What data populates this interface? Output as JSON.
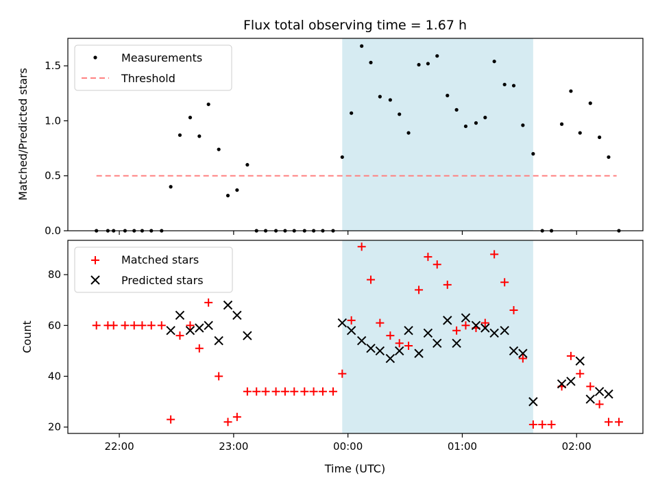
{
  "chart_data": [
    {
      "type": "scatter",
      "title": "Flux total observing time = 1.67 h",
      "xlabel": "",
      "ylabel": "Matched/Predicted stars",
      "ylim": [
        0,
        1.75
      ],
      "yticks": [
        0.0,
        0.5,
        1.0,
        1.5
      ],
      "ytick_labels": [
        "0.0",
        "0.5",
        "1.0",
        "1.5"
      ],
      "legend_position": "top-left",
      "shaded_region": {
        "x_start": -0.05,
        "x_end": 1.62,
        "color": "#add8e6"
      },
      "series": [
        {
          "name": "Measurements",
          "marker": "dot",
          "color": "#000000",
          "points": [
            [
              -2.2,
              0
            ],
            [
              -2.1,
              0
            ],
            [
              -2.05,
              0
            ],
            [
              -1.95,
              0
            ],
            [
              -1.87,
              0
            ],
            [
              -1.8,
              0
            ],
            [
              -1.72,
              0
            ],
            [
              -1.63,
              0
            ],
            [
              -1.55,
              0.4
            ],
            [
              -1.47,
              0.87
            ],
            [
              -1.38,
              1.03
            ],
            [
              -1.3,
              0.86
            ],
            [
              -1.22,
              1.15
            ],
            [
              -1.13,
              0.74
            ],
            [
              -1.05,
              0.32
            ],
            [
              -0.97,
              0.37
            ],
            [
              -0.88,
              0.6
            ],
            [
              -0.8,
              0
            ],
            [
              -0.72,
              0
            ],
            [
              -0.63,
              0
            ],
            [
              -0.55,
              0
            ],
            [
              -0.47,
              0
            ],
            [
              -0.38,
              0
            ],
            [
              -0.3,
              0
            ],
            [
              -0.22,
              0
            ],
            [
              -0.13,
              0
            ],
            [
              -0.05,
              0.67
            ],
            [
              0.03,
              1.07
            ],
            [
              0.12,
              1.68
            ],
            [
              0.2,
              1.53
            ],
            [
              0.28,
              1.22
            ],
            [
              0.37,
              1.19
            ],
            [
              0.45,
              1.06
            ],
            [
              0.53,
              0.89
            ],
            [
              0.62,
              1.51
            ],
            [
              0.7,
              1.52
            ],
            [
              0.78,
              1.59
            ],
            [
              0.87,
              1.23
            ],
            [
              0.95,
              1.1
            ],
            [
              1.03,
              0.95
            ],
            [
              1.12,
              0.98
            ],
            [
              1.2,
              1.03
            ],
            [
              1.28,
              1.54
            ],
            [
              1.37,
              1.33
            ],
            [
              1.45,
              1.32
            ],
            [
              1.53,
              0.96
            ],
            [
              1.62,
              0.7
            ],
            [
              1.7,
              0
            ],
            [
              1.78,
              0
            ],
            [
              1.87,
              0.97
            ],
            [
              1.95,
              1.27
            ],
            [
              2.03,
              0.89
            ],
            [
              2.12,
              1.16
            ],
            [
              2.2,
              0.85
            ],
            [
              2.28,
              0.67
            ],
            [
              2.37,
              0
            ]
          ]
        },
        {
          "name": "Threshold",
          "style": "dashed",
          "color": "#ff8080",
          "points": [
            [
              -2.2,
              0.5
            ],
            [
              2.35,
              0.5
            ]
          ]
        }
      ]
    },
    {
      "type": "scatter",
      "title": "",
      "xlabel": "Time (UTC)",
      "ylabel": "Count",
      "ylim": [
        17.5,
        93.5
      ],
      "yticks": [
        20,
        40,
        60,
        80
      ],
      "ytick_labels": [
        "20",
        "40",
        "60",
        "80"
      ],
      "xlim": [
        -2.45,
        2.58
      ],
      "xticks": [
        -2,
        -1,
        0,
        1,
        2
      ],
      "xtick_labels": [
        "22:00",
        "23:00",
        "00:00",
        "01:00",
        "02:00"
      ],
      "legend_position": "top-left",
      "shaded_region": {
        "x_start": -0.05,
        "x_end": 1.62,
        "color": "#add8e6"
      },
      "series": [
        {
          "name": "Matched stars",
          "marker": "plus",
          "color": "#ff0000",
          "points": [
            [
              -2.2,
              60
            ],
            [
              -2.1,
              60
            ],
            [
              -2.05,
              60
            ],
            [
              -1.95,
              60
            ],
            [
              -1.87,
              60
            ],
            [
              -1.8,
              60
            ],
            [
              -1.72,
              60
            ],
            [
              -1.63,
              60
            ],
            [
              -1.55,
              23
            ],
            [
              -1.47,
              56
            ],
            [
              -1.38,
              60
            ],
            [
              -1.3,
              51
            ],
            [
              -1.22,
              69
            ],
            [
              -1.13,
              40
            ],
            [
              -1.05,
              22
            ],
            [
              -0.97,
              24
            ],
            [
              -0.88,
              34
            ],
            [
              -0.8,
              34
            ],
            [
              -0.72,
              34
            ],
            [
              -0.63,
              34
            ],
            [
              -0.55,
              34
            ],
            [
              -0.47,
              34
            ],
            [
              -0.38,
              34
            ],
            [
              -0.3,
              34
            ],
            [
              -0.22,
              34
            ],
            [
              -0.13,
              34
            ],
            [
              -0.05,
              41
            ],
            [
              0.03,
              62
            ],
            [
              0.12,
              91
            ],
            [
              0.2,
              78
            ],
            [
              0.28,
              61
            ],
            [
              0.37,
              56
            ],
            [
              0.45,
              53
            ],
            [
              0.53,
              52
            ],
            [
              0.62,
              74
            ],
            [
              0.7,
              87
            ],
            [
              0.78,
              84
            ],
            [
              0.87,
              76
            ],
            [
              0.95,
              58
            ],
            [
              1.03,
              60
            ],
            [
              1.12,
              59
            ],
            [
              1.2,
              61
            ],
            [
              1.28,
              88
            ],
            [
              1.37,
              77
            ],
            [
              1.45,
              66
            ],
            [
              1.53,
              47
            ],
            [
              1.62,
              21
            ],
            [
              1.7,
              21
            ],
            [
              1.78,
              21
            ],
            [
              1.87,
              36
            ],
            [
              1.95,
              48
            ],
            [
              2.03,
              41
            ],
            [
              2.12,
              36
            ],
            [
              2.2,
              29
            ],
            [
              2.28,
              22
            ],
            [
              2.37,
              22
            ]
          ]
        },
        {
          "name": "Predicted stars",
          "marker": "x",
          "color": "#000000",
          "points": [
            [
              -1.55,
              58
            ],
            [
              -1.47,
              64
            ],
            [
              -1.38,
              58
            ],
            [
              -1.3,
              59
            ],
            [
              -1.22,
              60
            ],
            [
              -1.13,
              54
            ],
            [
              -1.05,
              68
            ],
            [
              -0.97,
              64
            ],
            [
              -0.88,
              56
            ],
            [
              -0.05,
              61
            ],
            [
              0.03,
              58
            ],
            [
              0.12,
              54
            ],
            [
              0.2,
              51
            ],
            [
              0.28,
              50
            ],
            [
              0.37,
              47
            ],
            [
              0.45,
              50
            ],
            [
              0.53,
              58
            ],
            [
              0.62,
              49
            ],
            [
              0.7,
              57
            ],
            [
              0.78,
              53
            ],
            [
              0.87,
              62
            ],
            [
              0.95,
              53
            ],
            [
              1.03,
              63
            ],
            [
              1.12,
              60
            ],
            [
              1.2,
              59
            ],
            [
              1.28,
              57
            ],
            [
              1.37,
              58
            ],
            [
              1.45,
              50
            ],
            [
              1.53,
              49
            ],
            [
              1.62,
              30
            ],
            [
              1.87,
              37
            ],
            [
              1.95,
              38
            ],
            [
              2.03,
              46
            ],
            [
              2.12,
              31
            ],
            [
              2.2,
              34
            ],
            [
              2.28,
              33
            ]
          ]
        }
      ]
    }
  ]
}
